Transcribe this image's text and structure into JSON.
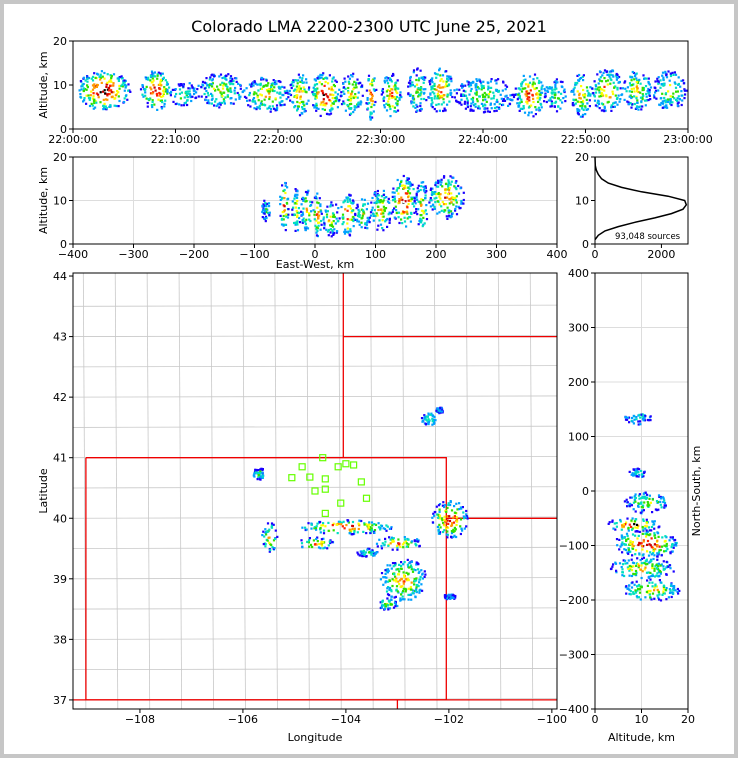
{
  "title": "Colorado LMA 2200-2300 UTC June 25, 2021",
  "colors": {
    "state_border": "#ee0000",
    "county_lines": "#c8c8c8",
    "station_marker": "#66ff00",
    "density_palette": [
      "#1a00ff",
      "#00a0ff",
      "#00e0c0",
      "#30e000",
      "#ffff00",
      "#ff9900",
      "#ff2200",
      "#cc0000",
      "#000000",
      "#ffffff"
    ],
    "histogram_line": "#000000",
    "grid": "#dddddd"
  },
  "chart_data": [
    {
      "id": "time_altitude",
      "type": "heatmap",
      "xlabel": "",
      "ylabel": "Altitude, km",
      "x_ticks": [
        "22:00:00",
        "22:10:00",
        "22:20:00",
        "22:30:00",
        "22:40:00",
        "22:50:00",
        "23:00:00"
      ],
      "y_ticks": [
        0,
        10,
        20
      ],
      "xlim_minutes": [
        0,
        60
      ],
      "ylim": [
        0,
        20
      ],
      "grid": true,
      "cells": [
        {
          "t0": 0.3,
          "t1": 5.5,
          "alt": 9,
          "spread": 4.5,
          "level": 9
        },
        {
          "t0": 6.5,
          "t1": 9.5,
          "alt": 9,
          "spread": 4.5,
          "level": 8
        },
        {
          "t0": 9.5,
          "t1": 12.0,
          "alt": 8,
          "spread": 3,
          "level": 3
        },
        {
          "t0": 12.0,
          "t1": 16.5,
          "alt": 9,
          "spread": 4,
          "level": 4
        },
        {
          "t0": 16.5,
          "t1": 21.0,
          "alt": 8,
          "spread": 4,
          "level": 5
        },
        {
          "t0": 21.0,
          "t1": 23.0,
          "alt": 8,
          "spread": 5,
          "level": 6
        },
        {
          "t0": 23.0,
          "t1": 26.0,
          "alt": 8,
          "spread": 5,
          "level": 8
        },
        {
          "t0": 26.0,
          "t1": 28.2,
          "alt": 8,
          "spread": 5,
          "level": 5
        },
        {
          "t0": 28.5,
          "t1": 29.5,
          "alt": 8,
          "spread": 6,
          "level": 6
        },
        {
          "t0": 30.0,
          "t1": 32.0,
          "alt": 8,
          "spread": 5,
          "level": 6
        },
        {
          "t0": 32.5,
          "t1": 34.5,
          "alt": 9,
          "spread": 5,
          "level": 4
        },
        {
          "t0": 34.5,
          "t1": 37.0,
          "alt": 9,
          "spread": 5,
          "level": 6
        },
        {
          "t0": 37.0,
          "t1": 43.0,
          "alt": 8,
          "spread": 4,
          "level": 3
        },
        {
          "t0": 43.0,
          "t1": 46.0,
          "alt": 8,
          "spread": 5,
          "level": 7
        },
        {
          "t0": 46.0,
          "t1": 48.0,
          "alt": 8,
          "spread": 4,
          "level": 3
        },
        {
          "t0": 48.5,
          "t1": 50.5,
          "alt": 8,
          "spread": 5,
          "level": 6
        },
        {
          "t0": 50.5,
          "t1": 53.5,
          "alt": 9,
          "spread": 5,
          "level": 6
        },
        {
          "t0": 53.5,
          "t1": 56.5,
          "alt": 9,
          "spread": 4.5,
          "level": 5
        },
        {
          "t0": 56.5,
          "t1": 59.8,
          "alt": 9,
          "spread": 4.5,
          "level": 4
        }
      ]
    },
    {
      "id": "eastwest_altitude",
      "type": "heatmap",
      "xlabel": "East-West, km",
      "ylabel": "Altitude, km",
      "x_ticks": [
        -400,
        -300,
        -200,
        -100,
        0,
        100,
        200,
        300,
        400
      ],
      "y_ticks": [
        0,
        10,
        20
      ],
      "xlim": [
        -400,
        400
      ],
      "ylim": [
        0,
        20
      ],
      "grid": true,
      "cells": [
        {
          "x0": -90,
          "x1": -75,
          "alt": 8,
          "spread": 2.5,
          "level": 2
        },
        {
          "x0": -60,
          "x1": -45,
          "alt": 9,
          "spread": 6,
          "level": 7
        },
        {
          "x0": -40,
          "x1": -25,
          "alt": 8,
          "spread": 5,
          "level": 5
        },
        {
          "x0": -25,
          "x1": -5,
          "alt": 8,
          "spread": 5,
          "level": 5
        },
        {
          "x0": -5,
          "x1": 10,
          "alt": 7,
          "spread": 5,
          "level": 7
        },
        {
          "x0": 10,
          "x1": 40,
          "alt": 6,
          "spread": 4,
          "level": 5
        },
        {
          "x0": 40,
          "x1": 65,
          "alt": 7,
          "spread": 5,
          "level": 8
        },
        {
          "x0": 65,
          "x1": 90,
          "alt": 7,
          "spread": 4,
          "level": 4
        },
        {
          "x0": 90,
          "x1": 125,
          "alt": 8,
          "spread": 5,
          "level": 5
        },
        {
          "x0": 125,
          "x1": 165,
          "alt": 10,
          "spread": 6,
          "level": 8
        },
        {
          "x0": 165,
          "x1": 185,
          "alt": 9,
          "spread": 6,
          "level": 5
        },
        {
          "x0": 185,
          "x1": 245,
          "alt": 11,
          "spread": 5,
          "level": 6
        }
      ]
    },
    {
      "id": "altitude_histogram",
      "type": "line",
      "x_ticks": [
        0,
        2000
      ],
      "y_ticks": [
        0,
        10,
        20
      ],
      "xlim": [
        0,
        2800
      ],
      "ylim": [
        0,
        20
      ],
      "annotation": "93,048 sources",
      "points": [
        [
          0,
          1
        ],
        [
          100,
          2
        ],
        [
          300,
          3
        ],
        [
          700,
          4
        ],
        [
          1200,
          5
        ],
        [
          1800,
          6
        ],
        [
          2300,
          7
        ],
        [
          2650,
          8
        ],
        [
          2750,
          9
        ],
        [
          2700,
          10
        ],
        [
          2200,
          11
        ],
        [
          1400,
          12
        ],
        [
          800,
          13
        ],
        [
          400,
          14
        ],
        [
          200,
          15
        ],
        [
          100,
          16
        ],
        [
          40,
          17
        ],
        [
          10,
          18
        ],
        [
          0,
          20
        ]
      ]
    },
    {
      "id": "plan_view",
      "type": "heatmap",
      "xlabel": "Longitude",
      "ylabel": "Latitude",
      "x_ticks": [
        -108,
        -106,
        -104,
        -102,
        -100
      ],
      "y_ticks": [
        37,
        38,
        39,
        40,
        41,
        42,
        43,
        44
      ],
      "xlim": [
        -109.3,
        -99.9
      ],
      "ylim": [
        36.85,
        44.05
      ],
      "cells": [
        {
          "lon": -104.0,
          "lat": 39.87,
          "rlon": 0.9,
          "rlat": 0.12,
          "level": 8
        },
        {
          "lon": -102.0,
          "lat": 40.0,
          "rlon": 0.35,
          "rlat": 0.32,
          "level": 7
        },
        {
          "lon": -103.0,
          "lat": 39.6,
          "rlon": 0.45,
          "rlat": 0.12,
          "level": 6
        },
        {
          "lon": -102.9,
          "lat": 39.0,
          "rlon": 0.45,
          "rlat": 0.35,
          "level": 6
        },
        {
          "lon": -104.6,
          "lat": 39.6,
          "rlon": 0.35,
          "rlat": 0.1,
          "level": 6
        },
        {
          "lon": -105.5,
          "lat": 39.7,
          "rlon": 0.15,
          "rlat": 0.25,
          "level": 5
        },
        {
          "lon": -103.2,
          "lat": 38.6,
          "rlon": 0.2,
          "rlat": 0.1,
          "level": 4
        },
        {
          "lon": -105.7,
          "lat": 40.75,
          "rlon": 0.12,
          "rlat": 0.1,
          "level": 3
        },
        {
          "lon": -102.4,
          "lat": 41.65,
          "rlon": 0.15,
          "rlat": 0.1,
          "level": 3
        },
        {
          "lon": -102.2,
          "lat": 41.8,
          "rlon": 0.08,
          "rlat": 0.05,
          "level": 2
        },
        {
          "lon": -102.0,
          "lat": 38.72,
          "rlon": 0.12,
          "rlat": 0.05,
          "level": 2
        },
        {
          "lon": -103.6,
          "lat": 39.45,
          "rlon": 0.2,
          "rlat": 0.07,
          "level": 3
        }
      ],
      "stations": [
        [
          -105.05,
          40.67
        ],
        [
          -104.85,
          40.85
        ],
        [
          -104.7,
          40.68
        ],
        [
          -104.6,
          40.45
        ],
        [
          -104.45,
          41.0
        ],
        [
          -104.4,
          40.65
        ],
        [
          -104.4,
          40.48
        ],
        [
          -104.15,
          40.85
        ],
        [
          -104.0,
          40.9
        ],
        [
          -103.85,
          40.88
        ],
        [
          -104.1,
          40.25
        ],
        [
          -103.7,
          40.6
        ],
        [
          -103.6,
          40.33
        ],
        [
          -104.4,
          40.08
        ]
      ]
    },
    {
      "id": "altitude_northsouth",
      "type": "heatmap",
      "xlabel": "Altitude, km",
      "ylabel": "North-South, km",
      "x_ticks": [
        0,
        10,
        20
      ],
      "y_ticks": [
        -400,
        -300,
        -200,
        -100,
        0,
        100,
        200,
        300,
        400
      ],
      "xlim": [
        0,
        20
      ],
      "ylim": [
        -400,
        400
      ],
      "cells": [
        {
          "alt": 11,
          "ns": -95,
          "ralt": 7,
          "rns": 25,
          "level": 8
        },
        {
          "alt": 8,
          "ns": -60,
          "ralt": 6,
          "rns": 12,
          "level": 8
        },
        {
          "alt": 10,
          "ns": -140,
          "ralt": 7,
          "rns": 20,
          "level": 5
        },
        {
          "alt": 12,
          "ns": -180,
          "ralt": 6,
          "rns": 20,
          "level": 5
        },
        {
          "alt": 11,
          "ns": -20,
          "ralt": 5,
          "rns": 20,
          "level": 4
        },
        {
          "alt": 9,
          "ns": 135,
          "ralt": 3,
          "rns": 12,
          "level": 2
        },
        {
          "alt": 9,
          "ns": 35,
          "ralt": 2,
          "rns": 8,
          "level": 3
        }
      ]
    }
  ]
}
